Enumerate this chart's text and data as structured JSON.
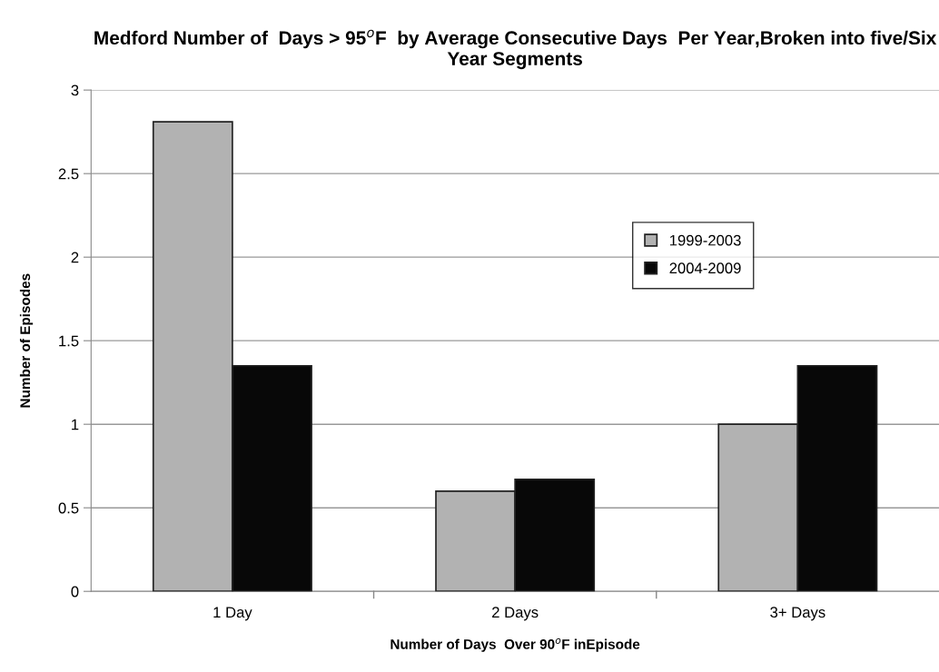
{
  "chart_data": {
    "type": "bar",
    "title": "Medford Number of  Days > 95$^{o}$F  by Average Consecutive Days  Per Year,Broken into five/Six Year Segments",
    "xlabel": "Number of Days  Over 90$^{o}$F inEpisode",
    "ylabel": "Number of Episodes",
    "categories": [
      "1 Day",
      "2 Days",
      "3+ Days"
    ],
    "series": [
      {
        "name": "1999-2003",
        "color": "#b2b2b2",
        "values": [
          2.81,
          0.6,
          1.0
        ]
      },
      {
        "name": "2004-2009",
        "color": "#080808",
        "values": [
          1.35,
          0.67,
          1.35
        ]
      }
    ],
    "ylim": [
      0,
      3
    ],
    "yticks": [
      0,
      0.5,
      1,
      1.5,
      2,
      2.5,
      3
    ],
    "grid": "y",
    "legend": "right"
  }
}
